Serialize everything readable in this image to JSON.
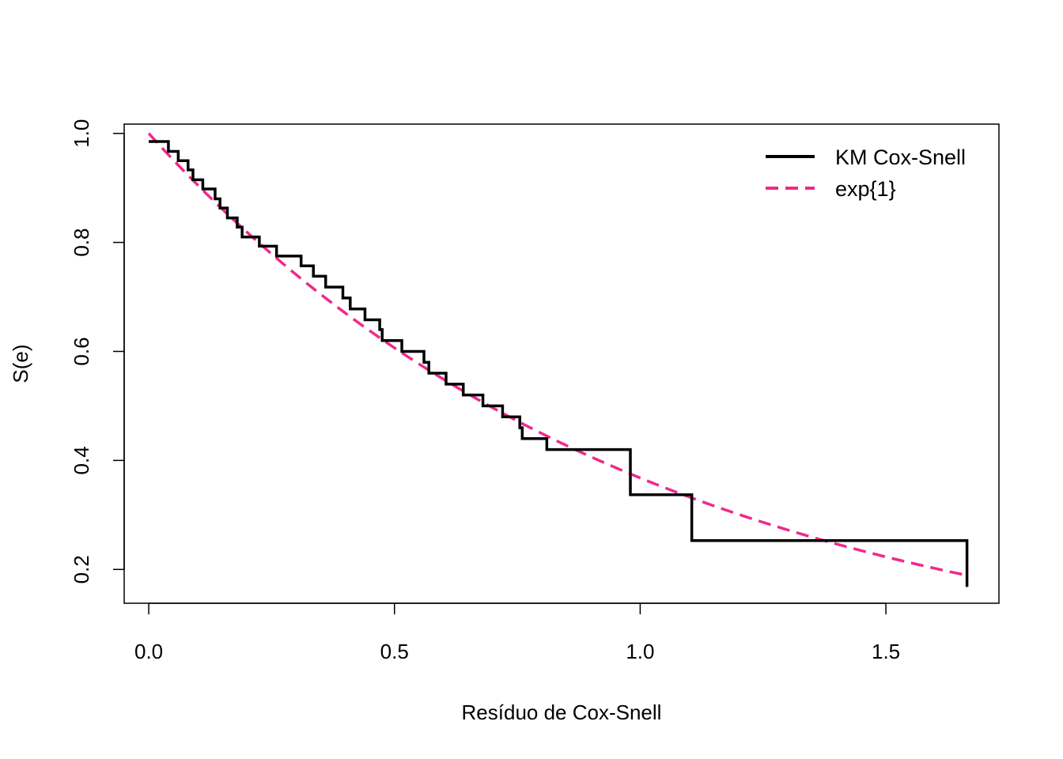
{
  "chart_data": {
    "type": "line",
    "title": "",
    "xlabel": "Resíduo de Cox-Snell",
    "ylabel": "S(e)",
    "xlim": [
      -0.05,
      1.73
    ],
    "ylim": [
      0.138,
      1.017
    ],
    "x_ticks": [
      0.0,
      0.5,
      1.0,
      1.5
    ],
    "x_tick_labels": [
      "0.0",
      "0.5",
      "1.0",
      "1.5"
    ],
    "y_ticks": [
      0.2,
      0.4,
      0.6,
      0.8,
      1.0
    ],
    "y_tick_labels": [
      "0.2",
      "0.4",
      "0.6",
      "0.8",
      "1.0"
    ],
    "grid": false,
    "legend_position": "top-right",
    "series": [
      {
        "name": "KM Cox-Snell",
        "style": "step",
        "color": "#000000",
        "x": [
          0,
          0.04,
          0.06,
          0.08,
          0.09,
          0.11,
          0.135,
          0.145,
          0.16,
          0.18,
          0.19,
          0.225,
          0.26,
          0.31,
          0.335,
          0.36,
          0.395,
          0.41,
          0.44,
          0.47,
          0.475,
          0.515,
          0.56,
          0.57,
          0.605,
          0.64,
          0.68,
          0.72,
          0.755,
          0.76,
          0.81,
          0.98,
          1.105,
          1.665
        ],
        "y": [
          0.985,
          0.967,
          0.95,
          0.933,
          0.915,
          0.898,
          0.88,
          0.863,
          0.845,
          0.828,
          0.81,
          0.793,
          0.775,
          0.757,
          0.738,
          0.718,
          0.698,
          0.678,
          0.658,
          0.64,
          0.62,
          0.6,
          0.58,
          0.56,
          0.54,
          0.52,
          0.5,
          0.48,
          0.46,
          0.44,
          0.42,
          0.337,
          0.253,
          0.168
        ]
      },
      {
        "name": "exp{1}",
        "style": "dashed",
        "color": "#EE2A8C",
        "function": "exp(-x)",
        "x_start": 0,
        "x_end": 1.665
      }
    ]
  }
}
